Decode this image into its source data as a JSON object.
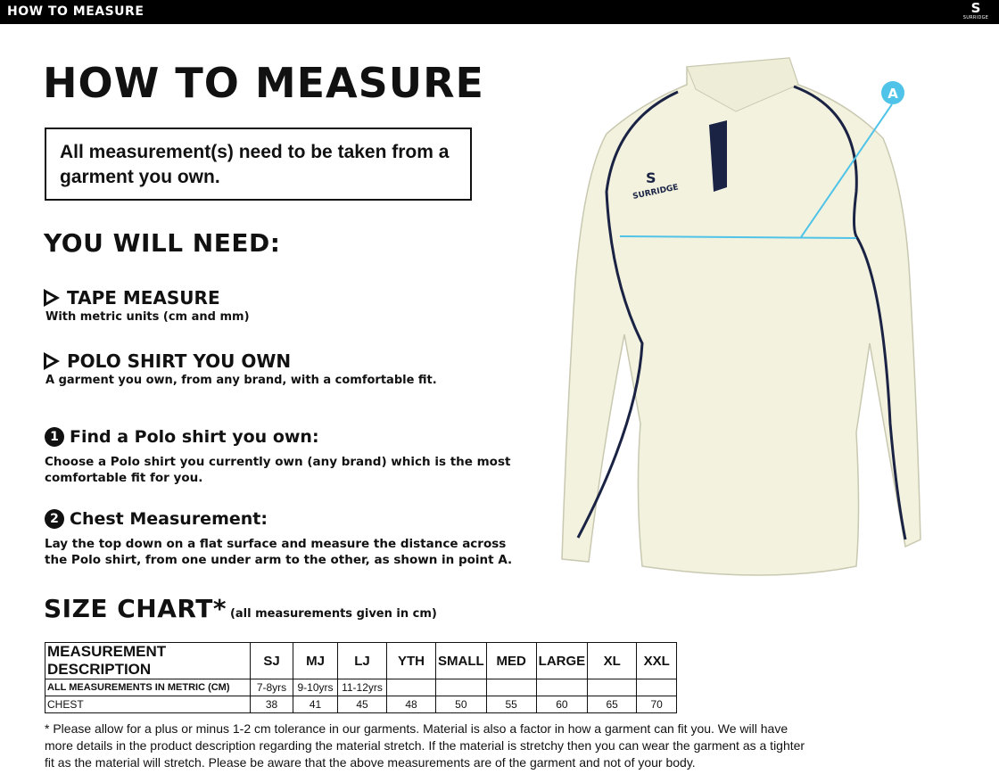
{
  "header": {
    "title": "HOW TO MEASURE",
    "logo_text": "SURRIDGE"
  },
  "title": "HOW TO MEASURE",
  "notice": "All measurement(s) need to be taken from a garment you own.",
  "need_heading": "YOU WILL NEED:",
  "needs": [
    {
      "title": "TAPE MEASURE",
      "desc": "With metric units (cm and mm)"
    },
    {
      "title": "POLO SHIRT YOU OWN",
      "desc": "A garment you own, from any brand, with a comfortable fit."
    }
  ],
  "steps": [
    {
      "num": "1",
      "title": "Find a Polo shirt you own:",
      "desc": "Choose a Polo shirt you currently own (any brand) which is the most comfortable fit for you."
    },
    {
      "num": "2",
      "title": "Chest Measurement:",
      "desc": "Lay the top down on a flat surface and measure the distance across the Polo shirt, from one under arm to the other, as shown in point A."
    }
  ],
  "size_chart": {
    "title": "SIZE CHART*",
    "note": "(all measurements given in cm)",
    "headers": [
      "MEASUREMENT DESCRIPTION",
      "SJ",
      "MJ",
      "LJ",
      "YTH",
      "SMALL",
      "MED",
      "LARGE",
      "XL",
      "XXL"
    ],
    "rows": [
      [
        "ALL MEASUREMENTS IN METRIC (CM)",
        "7-8yrs",
        "9-10yrs",
        "11-12yrs",
        "",
        "",
        "",
        "",
        "",
        ""
      ],
      [
        "CHEST",
        "38",
        "41",
        "45",
        "48",
        "50",
        "55",
        "60",
        "65",
        "70"
      ]
    ]
  },
  "footnote": "* Please allow for a plus or minus 1-2 cm tolerance in our garments. Material is also a factor in how a garment can fit you. We will have more details in the product description regarding the material stretch.  If the material is stretchy then you can wear the garment as a tighter fit as the material will stretch.  Please be aware that the above measurements are of the garment and not of your body.",
  "diagram": {
    "point_label": "A",
    "shirt_logo": "SURRIDGE",
    "accent_color": "#4fc3e8",
    "piping_color": "#1a2344",
    "shirt_color": "#f3f2df"
  }
}
